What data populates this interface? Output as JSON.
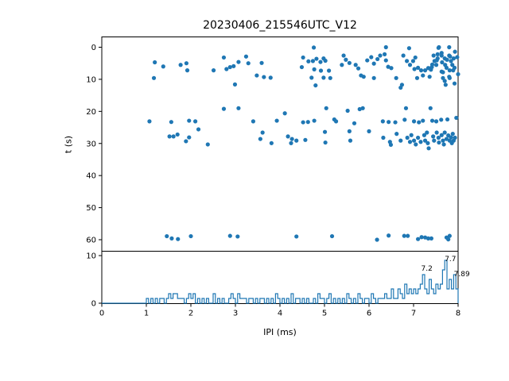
{
  "title": "20230406_215546UTC_V12",
  "colors": {
    "series": "#1f77b4",
    "axes": "#000000",
    "text": "#000000",
    "background": "#ffffff"
  },
  "chart_data": [
    {
      "type": "scatter",
      "ylabel": "t (s)",
      "xlim": [
        0,
        8
      ],
      "ylim": [
        63.7,
        -3.1
      ],
      "y_inverted": true,
      "yticks": [
        0,
        10,
        20,
        30,
        40,
        50,
        60
      ],
      "points": [
        [
          1.17,
          9.6
        ],
        [
          1.19,
          4.7
        ],
        [
          1.38,
          6.0
        ],
        [
          1.77,
          5.5
        ],
        [
          1.9,
          5.0
        ],
        [
          1.92,
          7.2
        ],
        [
          2.51,
          7.2
        ],
        [
          2.74,
          3.2
        ],
        [
          2.8,
          6.8
        ],
        [
          2.88,
          6.2
        ],
        [
          2.96,
          5.9
        ],
        [
          2.99,
          11.6
        ],
        [
          3.07,
          4.6
        ],
        [
          3.24,
          2.9
        ],
        [
          3.29,
          5.0
        ],
        [
          3.48,
          8.8
        ],
        [
          3.59,
          4.9
        ],
        [
          3.64,
          9.3
        ],
        [
          3.79,
          9.5
        ],
        [
          4.49,
          6.2
        ],
        [
          4.52,
          3.2
        ],
        [
          4.64,
          4.4
        ],
        [
          4.71,
          9.5
        ],
        [
          4.74,
          4.3
        ],
        [
          4.76,
          0.1
        ],
        [
          4.77,
          6.9
        ],
        [
          4.8,
          11.9
        ],
        [
          4.82,
          3.6
        ],
        [
          4.91,
          4.6
        ],
        [
          4.92,
          7.3
        ],
        [
          4.98,
          3.5
        ],
        [
          4.98,
          9.5
        ],
        [
          5.02,
          4.2
        ],
        [
          5.1,
          7.3
        ],
        [
          5.13,
          9.6
        ],
        [
          5.39,
          5.5
        ],
        [
          5.43,
          2.6
        ],
        [
          5.48,
          3.9
        ],
        [
          5.56,
          4.9
        ],
        [
          5.7,
          5.5
        ],
        [
          5.76,
          6.6
        ],
        [
          5.82,
          8.8
        ],
        [
          5.88,
          9.2
        ],
        [
          5.96,
          4.1
        ],
        [
          6.05,
          3.1
        ],
        [
          6.11,
          5.1
        ],
        [
          6.11,
          9.6
        ],
        [
          6.19,
          3.7
        ],
        [
          6.25,
          2.6
        ],
        [
          6.35,
          2.2
        ],
        [
          6.38,
          0.0
        ],
        [
          6.38,
          4.1
        ],
        [
          6.43,
          6.1
        ],
        [
          6.5,
          6.5
        ],
        [
          6.61,
          9.6
        ],
        [
          6.71,
          12.6
        ],
        [
          6.74,
          11.7
        ],
        [
          6.77,
          2.6
        ],
        [
          6.85,
          4.3
        ],
        [
          6.9,
          0.3
        ],
        [
          6.92,
          5.5
        ],
        [
          6.99,
          4.3
        ],
        [
          7.02,
          6.8
        ],
        [
          7.04,
          3.2
        ],
        [
          7.08,
          9.6
        ],
        [
          7.1,
          6.4
        ],
        [
          7.17,
          7.2
        ],
        [
          7.21,
          8.8
        ],
        [
          7.26,
          7.2
        ],
        [
          7.33,
          6.5
        ],
        [
          7.36,
          9.2
        ],
        [
          7.39,
          7.0
        ],
        [
          7.41,
          6.2
        ],
        [
          7.42,
          5.4
        ],
        [
          7.45,
          2.6
        ],
        [
          7.47,
          4.3
        ],
        [
          7.51,
          5.5
        ],
        [
          7.52,
          4.1
        ],
        [
          7.54,
          2.2
        ],
        [
          7.54,
          3.5
        ],
        [
          7.56,
          0.2
        ],
        [
          7.57,
          0.0
        ],
        [
          7.63,
          1.8
        ],
        [
          7.63,
          2.6
        ],
        [
          7.63,
          7.6
        ],
        [
          7.64,
          4.7
        ],
        [
          7.66,
          7.8
        ],
        [
          7.66,
          9.6
        ],
        [
          7.7,
          3.5
        ],
        [
          7.7,
          10.5
        ],
        [
          7.71,
          5.5
        ],
        [
          7.72,
          11.7
        ],
        [
          7.74,
          6.4
        ],
        [
          7.75,
          3.9
        ],
        [
          7.8,
          0.0
        ],
        [
          7.8,
          2.6
        ],
        [
          7.8,
          9.2
        ],
        [
          7.81,
          7.2
        ],
        [
          7.81,
          9.6
        ],
        [
          7.82,
          2.9
        ],
        [
          7.84,
          4.3
        ],
        [
          7.87,
          5.5
        ],
        [
          7.89,
          7.2
        ],
        [
          7.9,
          3.5
        ],
        [
          7.92,
          6.4
        ],
        [
          7.92,
          11.3
        ],
        [
          7.93,
          1.4
        ],
        [
          7.98,
          3.1
        ],
        [
          8.0,
          8.4
        ],
        [
          1.07,
          23.1
        ],
        [
          1.52,
          27.8
        ],
        [
          1.56,
          23.3
        ],
        [
          1.61,
          27.8
        ],
        [
          1.7,
          27.2
        ],
        [
          1.89,
          29.3
        ],
        [
          1.96,
          22.9
        ],
        [
          1.96,
          28.1
        ],
        [
          2.1,
          23.1
        ],
        [
          2.17,
          25.6
        ],
        [
          2.38,
          30.3
        ],
        [
          2.74,
          19.2
        ],
        [
          3.07,
          19.0
        ],
        [
          3.4,
          23.1
        ],
        [
          3.56,
          28.6
        ],
        [
          3.61,
          26.6
        ],
        [
          3.81,
          29.9
        ],
        [
          3.93,
          22.9
        ],
        [
          4.11,
          20.6
        ],
        [
          4.18,
          27.8
        ],
        [
          4.25,
          29.9
        ],
        [
          4.27,
          28.6
        ],
        [
          4.37,
          29.1
        ],
        [
          4.52,
          23.4
        ],
        [
          4.57,
          28.9
        ],
        [
          4.63,
          23.3
        ],
        [
          4.77,
          22.9
        ],
        [
          5.01,
          26.4
        ],
        [
          5.02,
          29.7
        ],
        [
          5.04,
          19.0
        ],
        [
          5.22,
          22.5
        ],
        [
          5.26,
          23.1
        ],
        [
          5.52,
          19.8
        ],
        [
          5.56,
          26.2
        ],
        [
          5.58,
          29.1
        ],
        [
          5.67,
          23.7
        ],
        [
          5.79,
          19.3
        ],
        [
          5.86,
          19.0
        ],
        [
          6.0,
          26.2
        ],
        [
          6.31,
          23.1
        ],
        [
          6.32,
          28.2
        ],
        [
          6.44,
          23.3
        ],
        [
          6.47,
          29.5
        ],
        [
          6.49,
          30.4
        ],
        [
          6.59,
          23.4
        ],
        [
          6.62,
          27.0
        ],
        [
          6.71,
          29.1
        ],
        [
          6.8,
          22.6
        ],
        [
          6.83,
          19.0
        ],
        [
          6.86,
          28.2
        ],
        [
          6.92,
          29.5
        ],
        [
          6.95,
          27.4
        ],
        [
          7.01,
          23.1
        ],
        [
          7.01,
          29.1
        ],
        [
          7.05,
          30.3
        ],
        [
          7.1,
          28.2
        ],
        [
          7.12,
          23.4
        ],
        [
          7.16,
          29.5
        ],
        [
          7.21,
          22.9
        ],
        [
          7.24,
          27.4
        ],
        [
          7.26,
          29.1
        ],
        [
          7.3,
          26.6
        ],
        [
          7.32,
          29.9
        ],
        [
          7.34,
          31.5
        ],
        [
          7.38,
          19.0
        ],
        [
          7.42,
          22.9
        ],
        [
          7.44,
          27.8
        ],
        [
          7.46,
          29.1
        ],
        [
          7.51,
          23.1
        ],
        [
          7.52,
          26.6
        ],
        [
          7.56,
          28.2
        ],
        [
          7.57,
          29.7
        ],
        [
          7.62,
          22.6
        ],
        [
          7.63,
          27.4
        ],
        [
          7.66,
          29.1
        ],
        [
          7.68,
          30.3
        ],
        [
          7.7,
          26.6
        ],
        [
          7.74,
          28.6
        ],
        [
          7.76,
          22.5
        ],
        [
          7.78,
          27.5
        ],
        [
          7.81,
          29.1
        ],
        [
          7.84,
          28.1
        ],
        [
          7.86,
          29.9
        ],
        [
          7.88,
          27.0
        ],
        [
          7.9,
          29.1
        ],
        [
          7.93,
          28.2
        ],
        [
          7.96,
          22.0
        ],
        [
          1.46,
          58.9
        ],
        [
          1.57,
          59.6
        ],
        [
          1.71,
          59.8
        ],
        [
          2.0,
          58.9
        ],
        [
          2.88,
          58.8
        ],
        [
          3.05,
          59.0
        ],
        [
          4.37,
          59.0
        ],
        [
          5.17,
          58.9
        ],
        [
          6.18,
          60.0
        ],
        [
          6.44,
          58.7
        ],
        [
          6.79,
          58.8
        ],
        [
          6.87,
          58.8
        ],
        [
          7.1,
          59.8
        ],
        [
          7.18,
          59.2
        ],
        [
          7.26,
          59.3
        ],
        [
          7.33,
          59.6
        ],
        [
          7.4,
          59.6
        ],
        [
          7.74,
          59.3
        ],
        [
          7.78,
          59.9
        ],
        [
          7.81,
          58.8
        ]
      ]
    },
    {
      "type": "histogram",
      "xlabel": "IPI (ms)",
      "xlim": [
        0,
        8
      ],
      "ylim": [
        0,
        10.9
      ],
      "yticks": [
        0,
        10
      ],
      "xticks": [
        0,
        1,
        2,
        3,
        4,
        5,
        6,
        7,
        8
      ],
      "bin_start": 0,
      "bin_width": 0.05,
      "counts": [
        0,
        0,
        0,
        0,
        0,
        0,
        0,
        0,
        0,
        0,
        0,
        0,
        0,
        0,
        0,
        0,
        0,
        0,
        0,
        0,
        1,
        0,
        1,
        0,
        1,
        0,
        1,
        1,
        0,
        1,
        2,
        1,
        2,
        2,
        1,
        1,
        1,
        0,
        1,
        2,
        1,
        2,
        0,
        1,
        0,
        1,
        0,
        1,
        0,
        0,
        2,
        0,
        1,
        0,
        1,
        0,
        0,
        1,
        2,
        1,
        0,
        2,
        1,
        1,
        1,
        0,
        1,
        1,
        0,
        1,
        0,
        1,
        1,
        0,
        1,
        0,
        1,
        0,
        2,
        1,
        0,
        1,
        0,
        1,
        0,
        2,
        0,
        1,
        1,
        0,
        1,
        0,
        1,
        0,
        0,
        1,
        0,
        2,
        1,
        1,
        0,
        1,
        2,
        0,
        1,
        0,
        1,
        0,
        1,
        0,
        2,
        1,
        0,
        1,
        0,
        2,
        1,
        0,
        1,
        1,
        0,
        2,
        1,
        0,
        1,
        1,
        1,
        2,
        1,
        1,
        3,
        1,
        1,
        3,
        2,
        1,
        4,
        2,
        3,
        2,
        3,
        2,
        3,
        4,
        6,
        3,
        2,
        5,
        3,
        2,
        4,
        3,
        4,
        7,
        9,
        3,
        5,
        3,
        6,
        3
      ],
      "peak_annotations": [
        {
          "label": "7.2",
          "x": 7.17,
          "y": 6.83
        },
        {
          "label": "7.7",
          "x": 7.7,
          "y": 8.83
        },
        {
          "label": "7.89",
          "x": 7.905,
          "y": 5.67
        }
      ]
    }
  ]
}
